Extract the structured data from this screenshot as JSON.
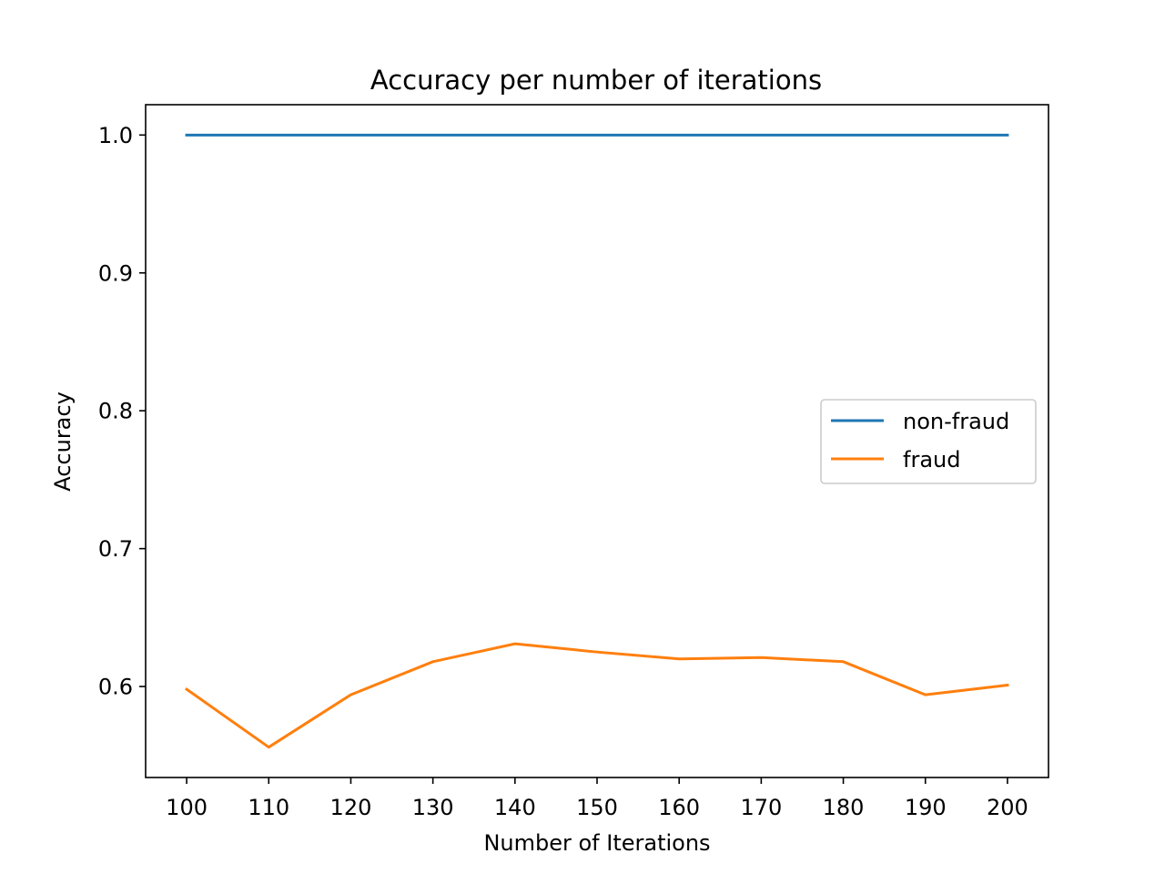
{
  "chart_data": {
    "type": "line",
    "title": "Accuracy per number of iterations",
    "xlabel": "Number of Iterations",
    "ylabel": "Accuracy",
    "x": [
      100,
      110,
      120,
      130,
      140,
      150,
      160,
      170,
      180,
      190,
      200
    ],
    "series": [
      {
        "name": "non-fraud",
        "color": "#1f77b4",
        "values": [
          1.0,
          1.0,
          1.0,
          1.0,
          1.0,
          1.0,
          1.0,
          1.0,
          1.0,
          1.0,
          1.0
        ]
      },
      {
        "name": "fraud",
        "color": "#ff7f0e",
        "values": [
          0.598,
          0.556,
          0.594,
          0.618,
          0.631,
          0.625,
          0.62,
          0.621,
          0.618,
          0.594,
          0.601
        ]
      }
    ],
    "xlim": [
      95,
      205
    ],
    "ylim": [
      0.534,
      1.022
    ],
    "xticks": [
      100,
      110,
      120,
      130,
      140,
      150,
      160,
      170,
      180,
      190,
      200
    ],
    "yticks": [
      0.6,
      0.7,
      0.8,
      0.9,
      1.0
    ],
    "ytick_labels": [
      "0.6",
      "0.7",
      "0.8",
      "0.9",
      "1.0"
    ],
    "grid": false,
    "legend_position": "center-right"
  }
}
